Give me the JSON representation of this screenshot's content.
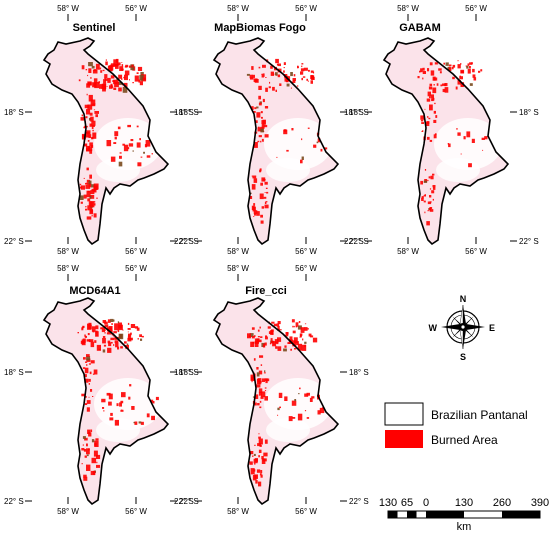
{
  "panels": [
    {
      "title": "Sentinel",
      "burn_level": 0.62
    },
    {
      "title": "MapBiomas Fogo",
      "burn_level": 0.38
    },
    {
      "title": "GABAM",
      "burn_level": 0.3
    },
    {
      "title": "MCD64A1",
      "burn_level": 0.52
    },
    {
      "title": "Fire_cci",
      "burn_level": 0.5
    }
  ],
  "graticule": {
    "lon_west": "58° W",
    "lon_east": "56° W",
    "lat_north": "18° S",
    "lat_south": "22° S"
  },
  "compass": {
    "n": "N",
    "s": "S",
    "e": "E",
    "w": "W"
  },
  "legend": [
    {
      "label": "Brazilian Pantanal",
      "color": "#ffffff"
    },
    {
      "label": "Burned Area",
      "color": "#ff0000"
    }
  ],
  "scalebar": {
    "ticks": [
      "130",
      "65",
      "0",
      "130",
      "260",
      "390"
    ],
    "unit": "km"
  },
  "colors": {
    "burned": "#ff0000",
    "tint": "#fbe3ea",
    "outline": "#000000"
  }
}
